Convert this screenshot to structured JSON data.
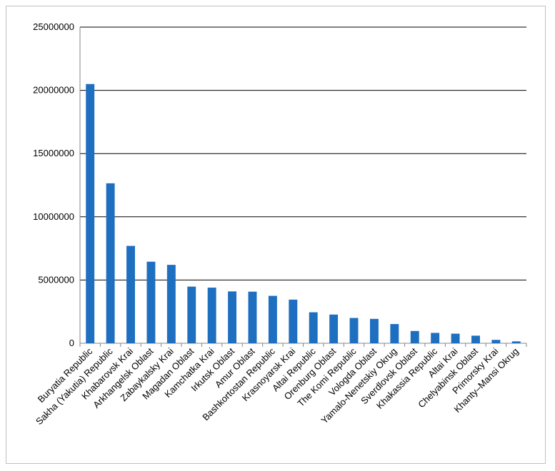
{
  "chart_data": {
    "type": "bar",
    "title": "",
    "xlabel": "",
    "ylabel": "",
    "ylim": [
      0,
      25000000
    ],
    "yticks": [
      0,
      5000000,
      10000000,
      15000000,
      20000000,
      25000000
    ],
    "grid": true,
    "legend": "none",
    "bar_color": "#1f6fc1",
    "categories": [
      "Buryatia Republic",
      "Sakha (Yakutia) Republic",
      "Khabarovsk Krai",
      "Arkhangelsk Oblast",
      "Zabaykalsky Krai",
      "Magadan Oblast",
      "Kamchatka Krai",
      "Irkutsk Oblast",
      "Amur Oblast",
      "Bashkortostan Republic",
      "Krasnoyarsk Krai",
      "Altai Republic",
      "Orenburg Oblast",
      "The Komi Republic",
      "Vologda Oblast",
      "Yamalo-Nenetskiy Okrug",
      "Sverdlovsk Oblast",
      "Khakassia Republic",
      "Altai Krai",
      "Chelyabinsk Oblast",
      "Primorsky Krai",
      "Khanty–Mansi Okrug"
    ],
    "values": [
      20500000,
      12650000,
      7700000,
      6450000,
      6200000,
      4480000,
      4400000,
      4100000,
      4080000,
      3750000,
      3450000,
      2450000,
      2270000,
      2000000,
      1930000,
      1520000,
      970000,
      820000,
      760000,
      600000,
      270000,
      150000
    ]
  }
}
